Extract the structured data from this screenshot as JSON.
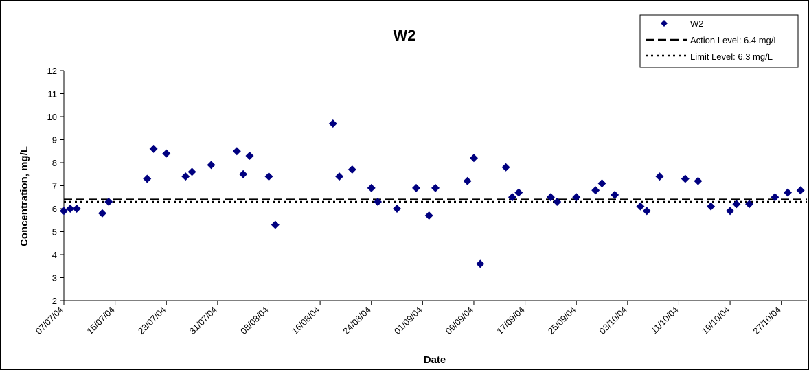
{
  "chart_data": {
    "type": "scatter",
    "title": "W2",
    "xlabel": "Date",
    "ylabel": "Concentration, mg/L",
    "x_axis": {
      "type": "date",
      "min": "2004-07-07",
      "max": "2004-10-31",
      "tick_labels": [
        "07/07/04",
        "15/07/04",
        "23/07/04",
        "31/07/04",
        "08/08/04",
        "16/08/04",
        "24/08/04",
        "01/09/04",
        "09/09/04",
        "17/09/04",
        "25/09/04",
        "03/10/04",
        "11/10/04",
        "19/10/04",
        "27/10/04"
      ]
    },
    "y_axis": {
      "min": 2,
      "max": 12,
      "step": 1
    },
    "grid": false,
    "legend": {
      "placement": "top-right",
      "entries": [
        "W2",
        "Action Level: 6.4 mg/L",
        "Limit Level: 6.3 mg/L"
      ]
    },
    "series": [
      {
        "name": "W2",
        "marker": "diamond",
        "color": "#000080",
        "points": [
          [
            "2004-07-07",
            5.9
          ],
          [
            "2004-07-08",
            6.0
          ],
          [
            "2004-07-09",
            6.0
          ],
          [
            "2004-07-13",
            5.8
          ],
          [
            "2004-07-14",
            6.3
          ],
          [
            "2004-07-20",
            7.3
          ],
          [
            "2004-07-21",
            8.6
          ],
          [
            "2004-07-23",
            8.4
          ],
          [
            "2004-07-26",
            7.4
          ],
          [
            "2004-07-27",
            7.6
          ],
          [
            "2004-07-30",
            7.9
          ],
          [
            "2004-08-03",
            8.5
          ],
          [
            "2004-08-04",
            7.5
          ],
          [
            "2004-08-05",
            8.3
          ],
          [
            "2004-08-08",
            7.4
          ],
          [
            "2004-08-09",
            5.3
          ],
          [
            "2004-08-18",
            9.7
          ],
          [
            "2004-08-19",
            7.4
          ],
          [
            "2004-08-21",
            7.7
          ],
          [
            "2004-08-24",
            6.9
          ],
          [
            "2004-08-25",
            6.3
          ],
          [
            "2004-08-28",
            6.0
          ],
          [
            "2004-08-31",
            6.9
          ],
          [
            "2004-09-02",
            5.7
          ],
          [
            "2004-09-03",
            6.9
          ],
          [
            "2004-09-08",
            7.2
          ],
          [
            "2004-09-09",
            8.2
          ],
          [
            "2004-09-10",
            3.6
          ],
          [
            "2004-09-14",
            7.8
          ],
          [
            "2004-09-15",
            6.5
          ],
          [
            "2004-09-16",
            6.7
          ],
          [
            "2004-09-21",
            6.5
          ],
          [
            "2004-09-22",
            6.3
          ],
          [
            "2004-09-25",
            6.5
          ],
          [
            "2004-09-28",
            6.8
          ],
          [
            "2004-09-29",
            7.1
          ],
          [
            "2004-10-01",
            6.6
          ],
          [
            "2004-10-05",
            6.1
          ],
          [
            "2004-10-06",
            5.9
          ],
          [
            "2004-10-08",
            7.4
          ],
          [
            "2004-10-12",
            7.3
          ],
          [
            "2004-10-14",
            7.2
          ],
          [
            "2004-10-16",
            6.1
          ],
          [
            "2004-10-19",
            5.9
          ],
          [
            "2004-10-20",
            6.2
          ],
          [
            "2004-10-22",
            6.2
          ],
          [
            "2004-10-26",
            6.5
          ],
          [
            "2004-10-28",
            6.7
          ],
          [
            "2004-10-30",
            6.8
          ]
        ]
      }
    ],
    "reference_lines": [
      {
        "name": "Action Level: 6.4 mg/L",
        "value": 6.4,
        "style": "dashed",
        "color": "#000000"
      },
      {
        "name": "Limit Level: 6.3 mg/L",
        "value": 6.3,
        "style": "dotted",
        "color": "#000000"
      }
    ]
  }
}
